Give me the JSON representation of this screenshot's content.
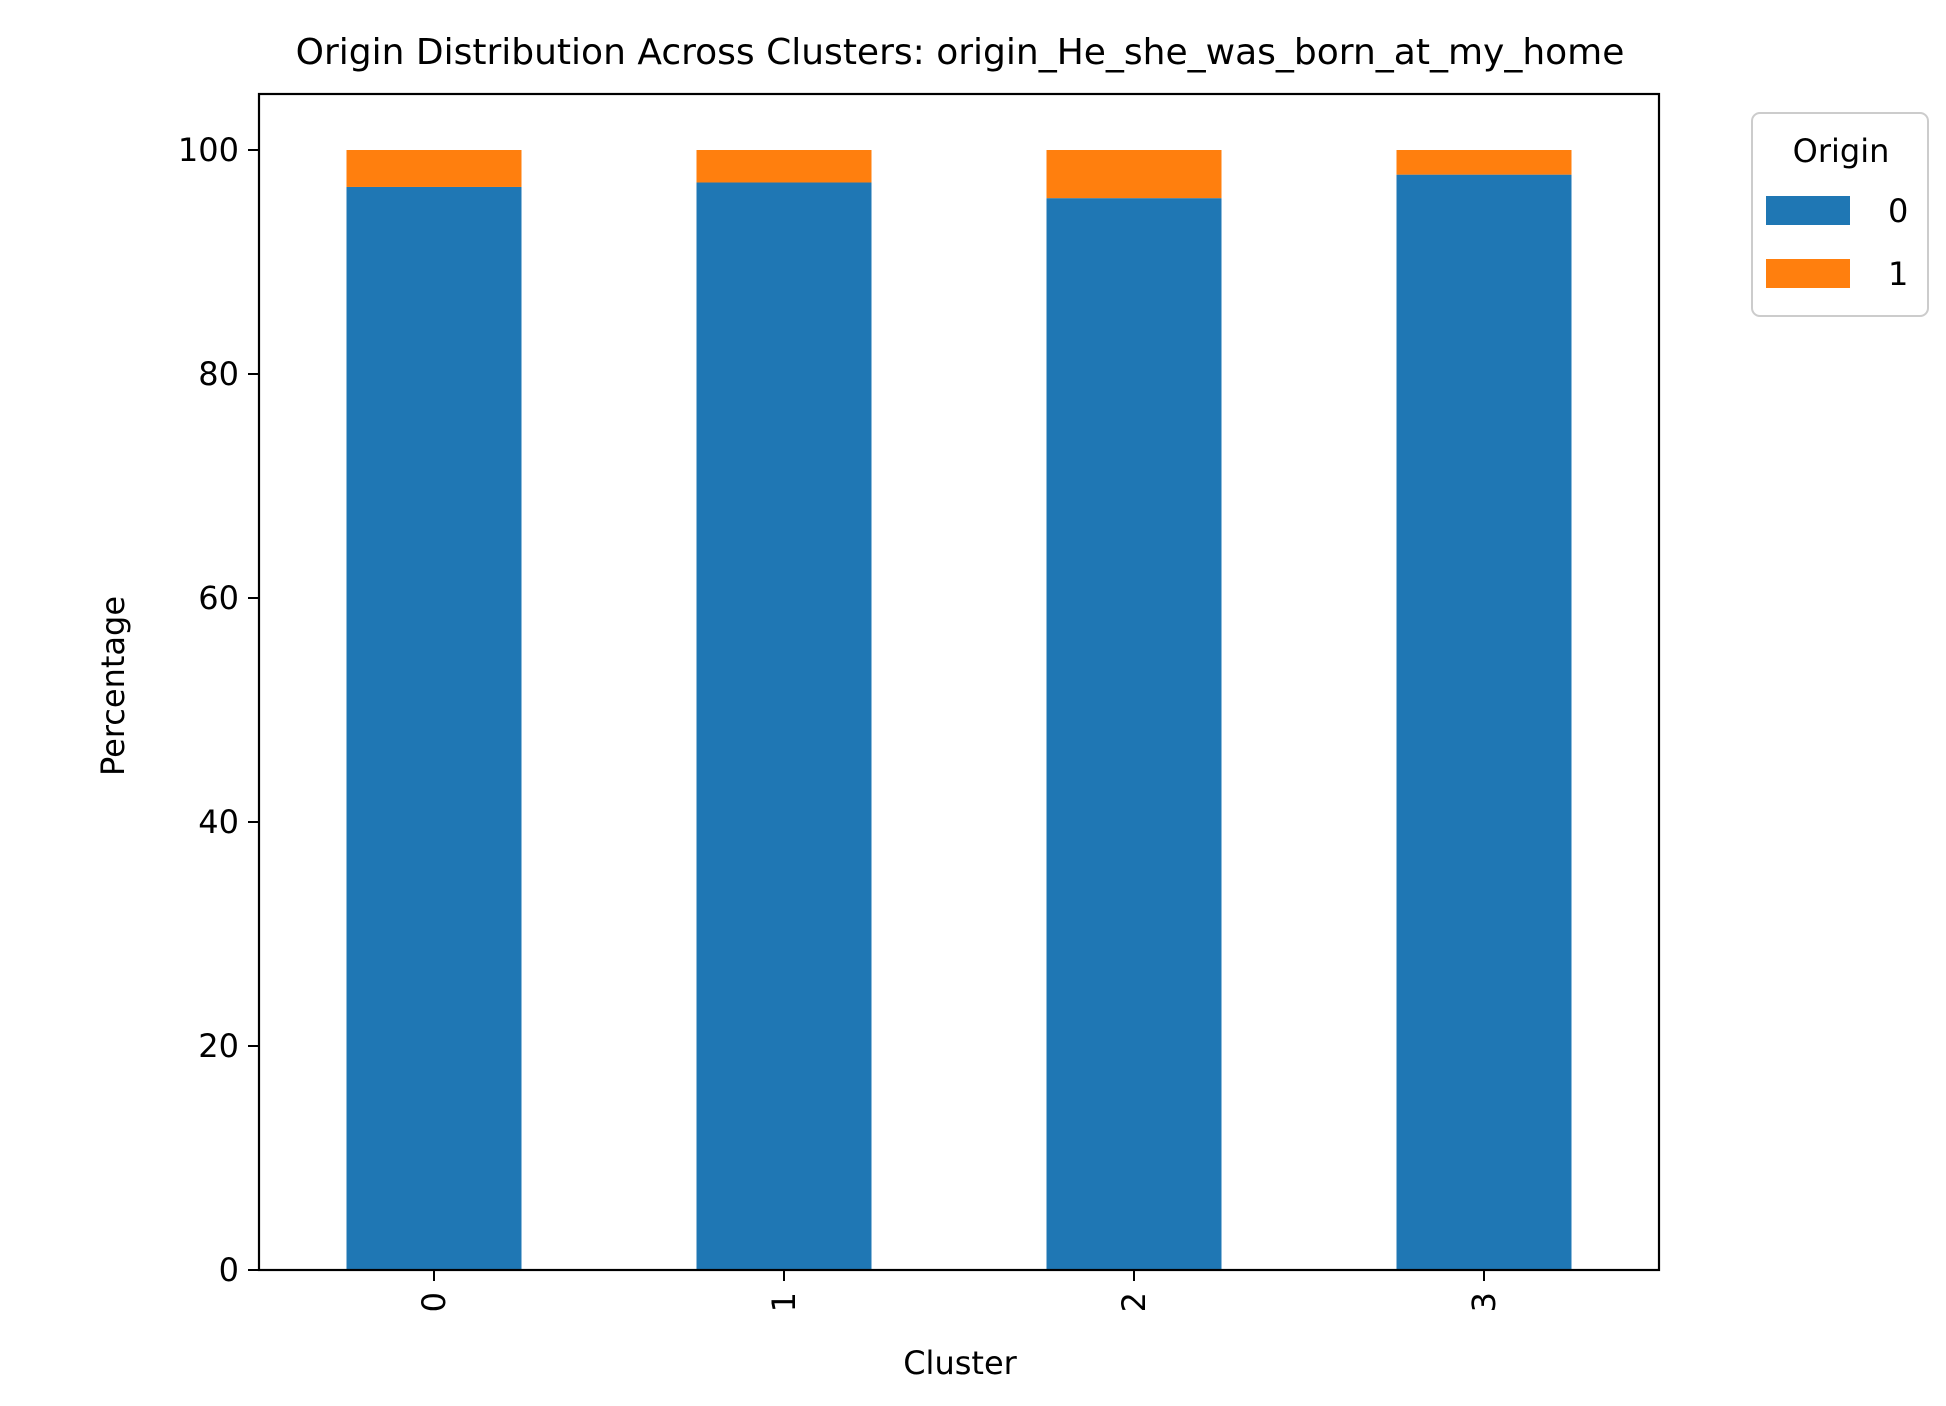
{
  "chart_data": {
    "type": "bar",
    "stacked": true,
    "title": "Origin Distribution Across Clusters: origin_He_she_was_born_at_my_home",
    "xlabel": "Cluster",
    "ylabel": "Percentage",
    "categories": [
      "0",
      "1",
      "2",
      "3"
    ],
    "series": [
      {
        "name": "0",
        "color": "#1f77b4",
        "values": [
          96.7,
          97.1,
          95.7,
          97.8
        ]
      },
      {
        "name": "1",
        "color": "#ff7f0e",
        "values": [
          3.3,
          2.9,
          4.3,
          2.2
        ]
      }
    ],
    "ylim": [
      0,
      105
    ],
    "yticks": [
      0,
      20,
      40,
      60,
      80,
      100
    ],
    "grid": false,
    "legend": {
      "title": "Origin",
      "placement": "outside-top-right"
    }
  }
}
